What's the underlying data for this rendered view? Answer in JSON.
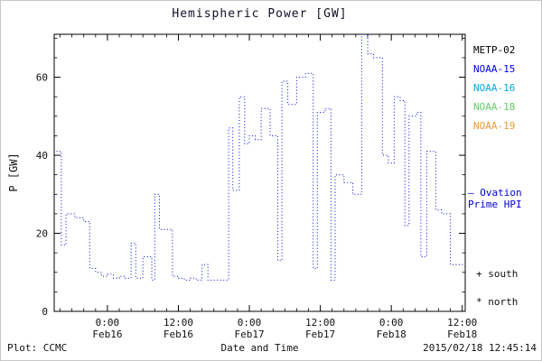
{
  "header": {
    "title": "Hemispheric Power [GW]"
  },
  "chart_data": {
    "type": "line",
    "style": "dotted-step",
    "title": "Hemispheric Power [GW]",
    "xlabel": "Date and Time",
    "ylabel": "P [GW]",
    "ylim": [
      0,
      71
    ],
    "xlim": [
      -9,
      60.5
    ],
    "grid": false,
    "legend_position": "right-outside",
    "line_color": "#0000dd",
    "y_ticks": [
      0,
      20,
      40,
      60
    ],
    "x_ticks": [
      {
        "t": 0,
        "time": "0:00",
        "date": "Feb16"
      },
      {
        "t": 12,
        "time": "12:00",
        "date": "Feb16"
      },
      {
        "t": 24,
        "time": "0:00",
        "date": "Feb17"
      },
      {
        "t": 36,
        "time": "12:00",
        "date": "Feb17"
      },
      {
        "t": 48,
        "time": "0:00",
        "date": "Feb18"
      },
      {
        "t": 60,
        "time": "12:00",
        "date": "Feb18"
      }
    ],
    "series": [
      {
        "name": "Ovation Prime HPI",
        "points": [
          [
            -8.6,
            41
          ],
          [
            -7.8,
            17
          ],
          [
            -7.0,
            25
          ],
          [
            -5.5,
            24
          ],
          [
            -4.0,
            23
          ],
          [
            -3.0,
            11
          ],
          [
            -2.0,
            10
          ],
          [
            -1.0,
            9
          ],
          [
            0.0,
            9.5
          ],
          [
            1.0,
            8.5
          ],
          [
            2.0,
            9
          ],
          [
            3.0,
            8.5
          ],
          [
            4.0,
            17.5
          ],
          [
            4.8,
            8.5
          ],
          [
            6.0,
            14
          ],
          [
            7.5,
            8
          ],
          [
            8.0,
            30
          ],
          [
            8.8,
            21
          ],
          [
            10.5,
            21
          ],
          [
            11.0,
            9
          ],
          [
            12.0,
            8.5
          ],
          [
            13.0,
            8
          ],
          [
            14.0,
            8.5
          ],
          [
            15.0,
            8
          ],
          [
            16.0,
            12
          ],
          [
            17.0,
            8
          ],
          [
            18.0,
            8
          ],
          [
            19.0,
            8
          ],
          [
            20.0,
            8
          ],
          [
            20.5,
            47
          ],
          [
            21.2,
            31
          ],
          [
            22.3,
            55
          ],
          [
            23.2,
            43
          ],
          [
            24.0,
            45
          ],
          [
            25.0,
            44
          ],
          [
            26.0,
            52
          ],
          [
            27.5,
            45
          ],
          [
            28.8,
            13
          ],
          [
            29.5,
            59
          ],
          [
            30.5,
            53
          ],
          [
            32.0,
            60
          ],
          [
            33.5,
            61
          ],
          [
            34.8,
            11
          ],
          [
            35.5,
            51
          ],
          [
            36.8,
            52
          ],
          [
            37.8,
            8
          ],
          [
            38.5,
            35
          ],
          [
            40.0,
            33
          ],
          [
            41.5,
            30
          ],
          [
            43.0,
            71
          ],
          [
            44.0,
            66
          ],
          [
            45.0,
            65
          ],
          [
            46.5,
            40
          ],
          [
            47.5,
            38
          ],
          [
            48.5,
            55
          ],
          [
            49.5,
            54
          ],
          [
            50.3,
            22
          ],
          [
            51.0,
            50
          ],
          [
            52.3,
            51
          ],
          [
            53.0,
            14
          ],
          [
            54.0,
            41
          ],
          [
            55.5,
            26
          ],
          [
            56.5,
            25
          ],
          [
            58.0,
            12
          ],
          [
            59.5,
            12
          ],
          [
            60.3,
            12
          ]
        ]
      }
    ]
  },
  "legend": {
    "items": [
      {
        "label": "METP-02",
        "color": "#000000"
      },
      {
        "label": "NOAA-15",
        "color": "#0000dd"
      },
      {
        "label": "NOAA-16",
        "color": "#00aadd"
      },
      {
        "label": "NOAA-18",
        "color": "#66cc66"
      },
      {
        "label": "NOAA-19",
        "color": "#ee9933"
      }
    ],
    "line_label_line1": "– Ovation",
    "line_label_line2": "Prime HPI",
    "line_label_color": "#0000dd",
    "marker_south": "+ south",
    "marker_north": "* north"
  },
  "footer": {
    "plot_credit": "Plot: CCMC",
    "timestamp": "2015/02/18 12:45:14"
  }
}
